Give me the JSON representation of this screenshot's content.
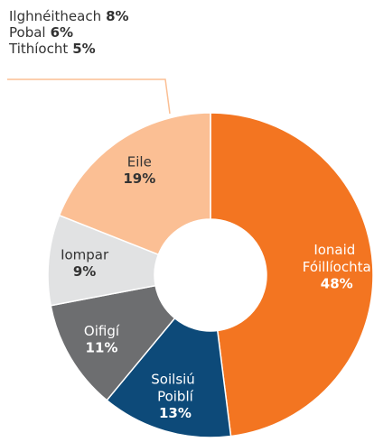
{
  "chart_data": {
    "type": "donut",
    "categories": [
      "Ionaid Fóillíochta",
      "Soilsiú Poiblí",
      "Oifigí",
      "Iompar",
      "Eile"
    ],
    "values": [
      48,
      13,
      11,
      9,
      19
    ],
    "value_labels": [
      "48%",
      "13%",
      "11%",
      "9%",
      "19%"
    ],
    "colors": [
      "#f37521",
      "#0d4a79",
      "#6d6e70",
      "#e1e2e3",
      "#fbbf94"
    ],
    "breakdown": {
      "categories": [
        "Ilghnéitheach",
        "Pobal",
        "Tithíocht"
      ],
      "values": [
        8,
        6,
        5
      ],
      "value_labels": [
        "8%",
        "6%",
        "5%"
      ]
    }
  }
}
